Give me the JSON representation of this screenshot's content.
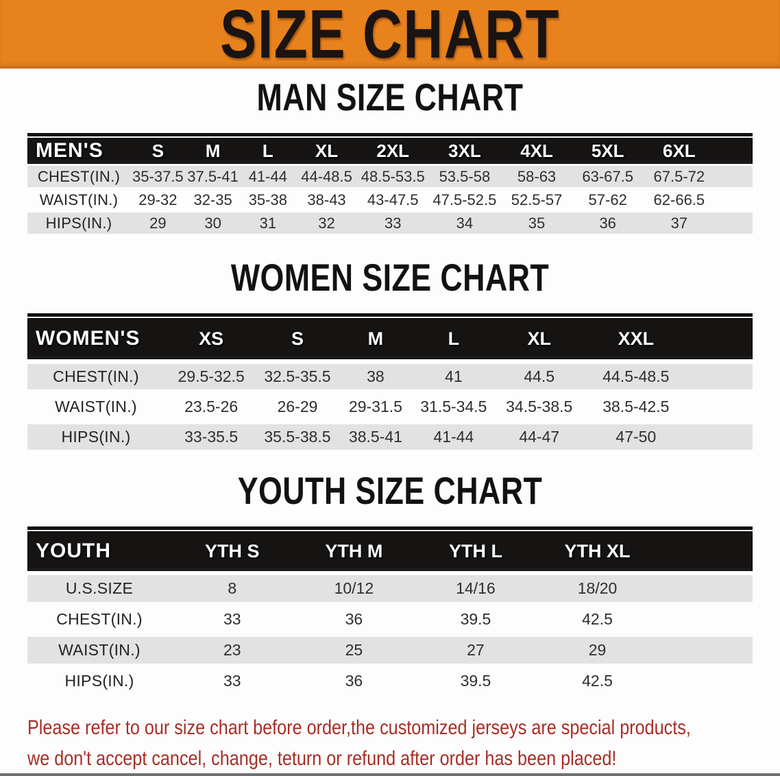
{
  "banner": {
    "title": "SIZE CHART"
  },
  "colors": {
    "banner_bg": "#E8821C",
    "banner_text": "#1A1412",
    "header_bg": "#161313",
    "row_gray": "#E2E2E2",
    "cell_text": "#2E2E2E",
    "disclaimer_text": "#A62E26"
  },
  "sections": {
    "men": {
      "heading": "MAN SIZE CHART",
      "table": {
        "label": "MEN'S",
        "columns": [
          "S",
          "M",
          "L",
          "XL",
          "2XL",
          "3XL",
          "4XL",
          "5XL",
          "6XL"
        ],
        "rows": [
          {
            "label": "CHEST(IN.)",
            "values": [
              "35-37.5",
              "37.5-41",
              "41-44",
              "44-48.5",
              "48.5-53.5",
              "53.5-58",
              "58-63",
              "63-67.5",
              "67.5-72"
            ]
          },
          {
            "label": "WAIST(IN.)",
            "values": [
              "29-32",
              "32-35",
              "35-38",
              "38-43",
              "43-47.5",
              "47.5-52.5",
              "52.5-57",
              "57-62",
              "62-66.5"
            ]
          },
          {
            "label": "HIPS(IN.)",
            "values": [
              "29",
              "30",
              "31",
              "32",
              "33",
              "34",
              "35",
              "36",
              "37"
            ]
          }
        ]
      }
    },
    "women": {
      "heading": "WOMEN SIZE CHART",
      "table": {
        "label": "WOMEN'S",
        "columns": [
          "XS",
          "S",
          "M",
          "L",
          "XL",
          "XXL"
        ],
        "rows": [
          {
            "label": "CHEST(IN.)",
            "values": [
              "29.5-32.5",
              "32.5-35.5",
              "38",
              "41",
              "44.5",
              "44.5-48.5"
            ]
          },
          {
            "label": "WAIST(IN.)",
            "values": [
              "23.5-26",
              "26-29",
              "29-31.5",
              "31.5-34.5",
              "34.5-38.5",
              "38.5-42.5"
            ]
          },
          {
            "label": "HIPS(IN.)",
            "values": [
              "33-35.5",
              "35.5-38.5",
              "38.5-41",
              "41-44",
              "44-47",
              "47-50"
            ]
          }
        ]
      }
    },
    "youth": {
      "heading": "YOUTH SIZE CHART",
      "table": {
        "label": "YOUTH",
        "columns": [
          "YTH S",
          "YTH M",
          "YTH L",
          "YTH XL"
        ],
        "rows": [
          {
            "label": "U.S.SIZE",
            "values": [
              "8",
              "10/12",
              "14/16",
              "18/20"
            ]
          },
          {
            "label": "CHEST(IN.)",
            "values": [
              "33",
              "36",
              "39.5",
              "42.5"
            ]
          },
          {
            "label": "WAIST(IN.)",
            "values": [
              "23",
              "25",
              "27",
              "29"
            ]
          },
          {
            "label": "HIPS(IN.)",
            "values": [
              "33",
              "36",
              "39.5",
              "42.5"
            ]
          }
        ]
      }
    }
  },
  "footer": {
    "line1": "Please refer to our size chart before order,the customized jerseys are special products,",
    "line2": "we don't accept cancel, change, teturn or refund after order has been placed!"
  }
}
